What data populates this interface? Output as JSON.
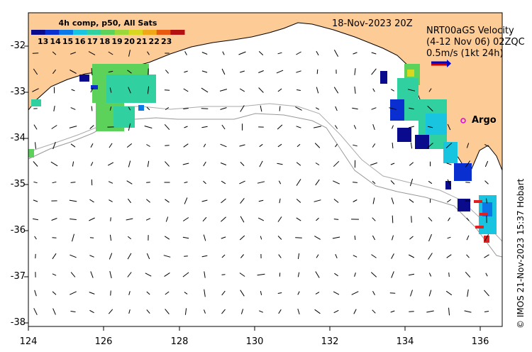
{
  "map": {
    "date_label": "18-Nov-2023 20Z",
    "velocity_label_line1": "NRT00aGS Velocity",
    "velocity_label_line2": "(4-12 Nov 06) 02ZQC",
    "velocity_scale_label": "0.5m/s (1kt 24h)",
    "argo_label": "Argo",
    "credit": "© IMOS 21-Nov-2023 15:37 Hobart"
  },
  "colorbar": {
    "title": "4h comp, p50, All Sats",
    "ticks": [
      "13",
      "14",
      "15",
      "16",
      "17",
      "18",
      "19",
      "20",
      "21",
      "22",
      "23"
    ],
    "colors": [
      "#0a0a8c",
      "#0a2fd0",
      "#0b78e8",
      "#18c4e0",
      "#30d0a0",
      "#5cd25a",
      "#9cd83a",
      "#d8d820",
      "#f0a818",
      "#e85a10",
      "#b41010"
    ]
  },
  "axes": {
    "x_ticks": [
      "124",
      "126",
      "128",
      "130",
      "132",
      "134",
      "136"
    ],
    "y_ticks": [
      "-32",
      "-33",
      "-34",
      "-35",
      "-36",
      "-37",
      "-38"
    ],
    "x_range_deg": [
      124,
      136.6
    ],
    "y_range_deg": [
      -38.1,
      -31.3
    ]
  },
  "colors": {
    "land": "#fdcb96",
    "ocean": "#ffffff",
    "argo_marker": "#e000e0"
  }
}
